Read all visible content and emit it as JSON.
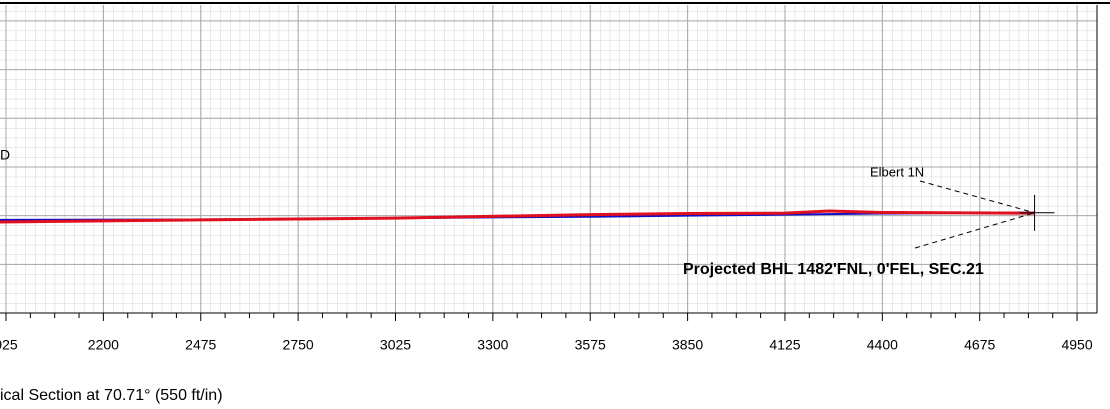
{
  "chart_data": {
    "type": "line",
    "xlabel": "ical Section at 70.71° (550 ft/in)",
    "xlim": [
      1908,
      5043
    ],
    "xticks": [
      {
        "value": 1925,
        "label": "925"
      },
      2200,
      2475,
      2750,
      3025,
      3300,
      3575,
      3850,
      4125,
      4400,
      4675,
      4950
    ],
    "ylim": [
      0,
      870
    ],
    "yticks": [
      137.5,
      275,
      412.5,
      550,
      687.5,
      825
    ],
    "grid": true,
    "series": [
      {
        "color": "#1010c8",
        "x": [
          1908,
          2475,
          3025,
          3575,
          3850,
          4125,
          4400,
          4830
        ],
        "values": [
          263,
          264,
          268,
          272,
          275,
          278,
          281,
          284
        ]
      },
      {
        "color": "#e0101e",
        "x": [
          1908,
          2475,
          3025,
          3575,
          3850,
          4125,
          4250,
          4400,
          4830
        ],
        "values": [
          257,
          263,
          268,
          278,
          281,
          282,
          288,
          284,
          282
        ]
      }
    ],
    "annotations": [
      {
        "text": "D"
      },
      {
        "text": "Elbert 1N"
      },
      {
        "text": "Projected BHL 1482'FNL, 0'FEL, SEC.21",
        "x": 4830,
        "y": 283
      }
    ]
  }
}
